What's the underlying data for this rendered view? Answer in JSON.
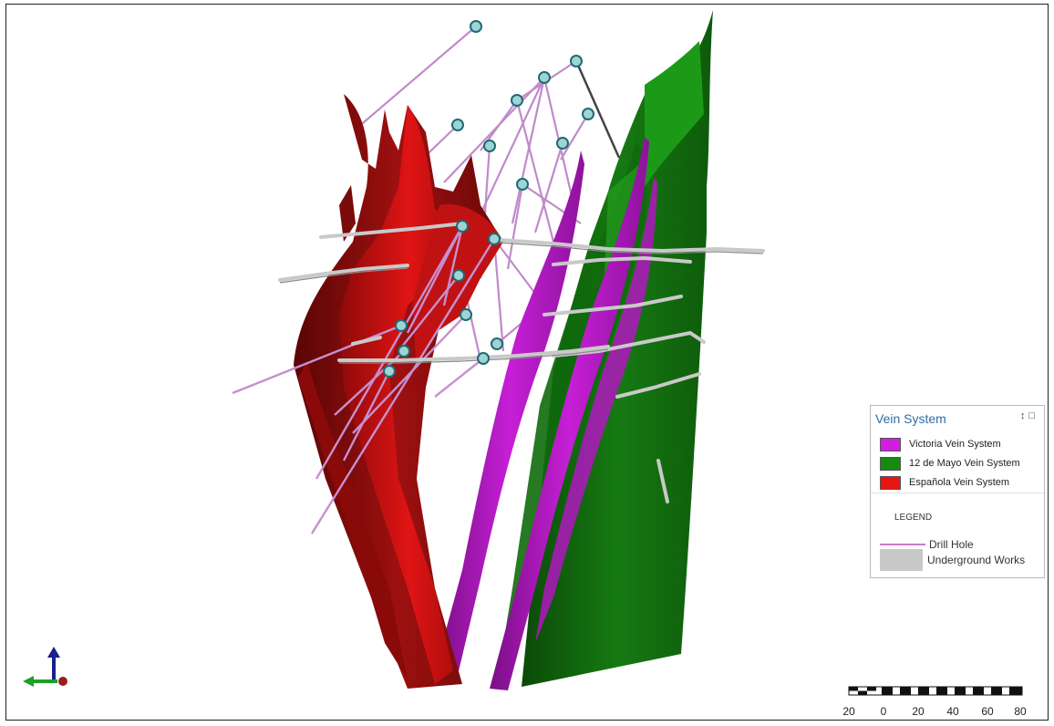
{
  "legend": {
    "title": "Vein System",
    "controls": "↕□",
    "items": [
      {
        "label": "Victoria Vein System",
        "color": "#d21ee0"
      },
      {
        "label": "12 de Mayo Vein System",
        "color": "#178a10"
      },
      {
        "label": "Española Vein System",
        "color": "#e81612"
      }
    ],
    "subheading": "LEGEND",
    "drill_hole_label": "Drill Hole",
    "drill_hole_color": "#c978cf",
    "underground_works_label": "Underground Works",
    "underground_works_color": "#c8c8c8"
  },
  "scale_bar": {
    "labels": [
      "20",
      "0",
      "20",
      "40",
      "60",
      "80"
    ]
  },
  "axis_triad": {
    "icons": [
      "axis-z-up-arrow-icon",
      "axis-x-left-arrow-icon",
      "axis-y-origin-icon"
    ],
    "colors": {
      "z": "#1a1f8a",
      "x": "#1f9e28",
      "y": "#9b1b1b"
    }
  }
}
